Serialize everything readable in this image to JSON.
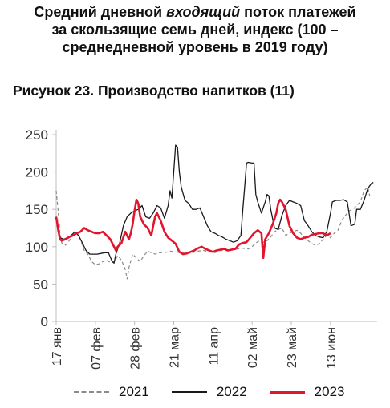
{
  "header": {
    "title_part1": "Средний дневной ",
    "title_italic": "входящий",
    "title_part2": " поток платежей",
    "title_line2": "за скользящие семь дней, индекс (100 –",
    "title_line3": "среднедневной уровень в 2019 году)"
  },
  "figure_caption": "Рисунок 23. Производство напитков (11)",
  "chart_data": {
    "type": "line",
    "x_unit": "days since 17 Jan",
    "x_ticks": [
      {
        "day": 0,
        "label": "17 янв"
      },
      {
        "day": 21,
        "label": "07 фев"
      },
      {
        "day": 42,
        "label": "28 фев"
      },
      {
        "day": 63,
        "label": "21 мар"
      },
      {
        "day": 84,
        "label": "11 апр"
      },
      {
        "day": 105,
        "label": "02 май"
      },
      {
        "day": 126,
        "label": "23 май"
      },
      {
        "day": 147,
        "label": "13 июн"
      }
    ],
    "xlim": [
      0,
      172
    ],
    "ylim": [
      0,
      250
    ],
    "yticks": [
      0,
      50,
      100,
      150,
      200,
      250
    ],
    "grid": false,
    "legend_position": "bottom",
    "series": [
      {
        "name": "2021",
        "color": "#8a8a8a",
        "style": "dashed",
        "points": [
          [
            0,
            175
          ],
          [
            1,
            150
          ],
          [
            2,
            118
          ],
          [
            3,
            105
          ],
          [
            5,
            102
          ],
          [
            7,
            108
          ],
          [
            9,
            115
          ],
          [
            11,
            118
          ],
          [
            13,
            110
          ],
          [
            15,
            95
          ],
          [
            17,
            90
          ],
          [
            19,
            80
          ],
          [
            21,
            76
          ],
          [
            23,
            77
          ],
          [
            25,
            80
          ],
          [
            27,
            82
          ],
          [
            29,
            79
          ],
          [
            31,
            80
          ],
          [
            33,
            88
          ],
          [
            35,
            82
          ],
          [
            37,
            70
          ],
          [
            38,
            57
          ],
          [
            39,
            72
          ],
          [
            41,
            90
          ],
          [
            43,
            85
          ],
          [
            45,
            80
          ],
          [
            47,
            88
          ],
          [
            49,
            94
          ],
          [
            51,
            92
          ],
          [
            53,
            90
          ],
          [
            55,
            92
          ],
          [
            58,
            92
          ],
          [
            61,
            94
          ],
          [
            64,
            93
          ],
          [
            67,
            92
          ],
          [
            70,
            91
          ],
          [
            73,
            92
          ],
          [
            76,
            94
          ],
          [
            79,
            95
          ],
          [
            82,
            93
          ],
          [
            85,
            92
          ],
          [
            88,
            95
          ],
          [
            91,
            95
          ],
          [
            94,
            96
          ],
          [
            97,
            97
          ],
          [
            100,
            98
          ],
          [
            103,
            97
          ],
          [
            105,
            100
          ],
          [
            107,
            105
          ],
          [
            109,
            108
          ],
          [
            111,
            106
          ],
          [
            113,
            108
          ],
          [
            115,
            113
          ],
          [
            117,
            120
          ],
          [
            119,
            123
          ],
          [
            121,
            125
          ],
          [
            123,
            115
          ],
          [
            125,
            118
          ],
          [
            127,
            120
          ],
          [
            129,
            122
          ],
          [
            131,
            118
          ],
          [
            133,
            112
          ],
          [
            135,
            108
          ],
          [
            137,
            104
          ],
          [
            139,
            102
          ],
          [
            141,
            104
          ],
          [
            143,
            110
          ],
          [
            145,
            115
          ],
          [
            147,
            112
          ],
          [
            149,
            118
          ],
          [
            151,
            122
          ],
          [
            153,
            135
          ],
          [
            155,
            142
          ],
          [
            157,
            148
          ],
          [
            159,
            150
          ],
          [
            161,
            155
          ],
          [
            163,
            160
          ],
          [
            165,
            175
          ],
          [
            167,
            180
          ],
          [
            168,
            168
          ]
        ]
      },
      {
        "name": "2022",
        "color": "#1a1a1a",
        "style": "solid",
        "points": [
          [
            0,
            140
          ],
          [
            1,
            120
          ],
          [
            2,
            112
          ],
          [
            4,
            110
          ],
          [
            6,
            112
          ],
          [
            8,
            115
          ],
          [
            10,
            120
          ],
          [
            12,
            115
          ],
          [
            14,
            105
          ],
          [
            16,
            95
          ],
          [
            18,
            90
          ],
          [
            20,
            90
          ],
          [
            22,
            90
          ],
          [
            24,
            91
          ],
          [
            26,
            92
          ],
          [
            28,
            92
          ],
          [
            30,
            80
          ],
          [
            31,
            78
          ],
          [
            32,
            90
          ],
          [
            34,
            105
          ],
          [
            36,
            128
          ],
          [
            38,
            140
          ],
          [
            40,
            145
          ],
          [
            42,
            148
          ],
          [
            44,
            150
          ],
          [
            46,
            155
          ],
          [
            48,
            140
          ],
          [
            50,
            138
          ],
          [
            52,
            145
          ],
          [
            54,
            155
          ],
          [
            56,
            152
          ],
          [
            58,
            138
          ],
          [
            60,
            155
          ],
          [
            61,
            175
          ],
          [
            62,
            165
          ],
          [
            64,
            236
          ],
          [
            65,
            233
          ],
          [
            66,
            200
          ],
          [
            67,
            180
          ],
          [
            69,
            162
          ],
          [
            71,
            158
          ],
          [
            73,
            150
          ],
          [
            75,
            150
          ],
          [
            77,
            152
          ],
          [
            79,
            140
          ],
          [
            81,
            128
          ],
          [
            83,
            120
          ],
          [
            85,
            118
          ],
          [
            87,
            115
          ],
          [
            89,
            113
          ],
          [
            91,
            110
          ],
          [
            93,
            108
          ],
          [
            95,
            106
          ],
          [
            97,
            108
          ],
          [
            99,
            115
          ],
          [
            100,
            150
          ],
          [
            101,
            180
          ],
          [
            102,
            212
          ],
          [
            103,
            213
          ],
          [
            105,
            212
          ],
          [
            106,
            212
          ],
          [
            107,
            170
          ],
          [
            108,
            160
          ],
          [
            110,
            145
          ],
          [
            112,
            160
          ],
          [
            113,
            170
          ],
          [
            114,
            168
          ],
          [
            115,
            150
          ],
          [
            117,
            125
          ],
          [
            119,
            123
          ],
          [
            121,
            142
          ],
          [
            123,
            155
          ],
          [
            125,
            162
          ],
          [
            127,
            160
          ],
          [
            129,
            158
          ],
          [
            131,
            155
          ],
          [
            133,
            135
          ],
          [
            135,
            128
          ],
          [
            137,
            120
          ],
          [
            139,
            115
          ],
          [
            141,
            113
          ],
          [
            143,
            112
          ],
          [
            145,
            120
          ],
          [
            147,
            145
          ],
          [
            148,
            160
          ],
          [
            150,
            162
          ],
          [
            152,
            162
          ],
          [
            154,
            163
          ],
          [
            156,
            160
          ],
          [
            158,
            128
          ],
          [
            160,
            130
          ],
          [
            161,
            150
          ],
          [
            163,
            150
          ],
          [
            165,
            162
          ],
          [
            167,
            178
          ],
          [
            169,
            185
          ],
          [
            170,
            186
          ]
        ]
      },
      {
        "name": "2023",
        "color": "#e3152e",
        "style": "solid",
        "points": [
          [
            0,
            140
          ],
          [
            1,
            125
          ],
          [
            2,
            110
          ],
          [
            3,
            108
          ],
          [
            5,
            110
          ],
          [
            7,
            113
          ],
          [
            9,
            115
          ],
          [
            11,
            118
          ],
          [
            13,
            120
          ],
          [
            15,
            125
          ],
          [
            17,
            122
          ],
          [
            19,
            120
          ],
          [
            21,
            118
          ],
          [
            23,
            118
          ],
          [
            25,
            120
          ],
          [
            27,
            115
          ],
          [
            29,
            110
          ],
          [
            31,
            100
          ],
          [
            32,
            95
          ],
          [
            33,
            100
          ],
          [
            35,
            105
          ],
          [
            37,
            120
          ],
          [
            38,
            115
          ],
          [
            39,
            110
          ],
          [
            40,
            118
          ],
          [
            41,
            130
          ],
          [
            42,
            148
          ],
          [
            43,
            163
          ],
          [
            44,
            158
          ],
          [
            45,
            140
          ],
          [
            47,
            130
          ],
          [
            49,
            125
          ],
          [
            51,
            115
          ],
          [
            52,
            128
          ],
          [
            53,
            140
          ],
          [
            54,
            145
          ],
          [
            56,
            135
          ],
          [
            58,
            120
          ],
          [
            60,
            112
          ],
          [
            62,
            108
          ],
          [
            64,
            104
          ],
          [
            66,
            93
          ],
          [
            68,
            90
          ],
          [
            70,
            91
          ],
          [
            72,
            93
          ],
          [
            74,
            95
          ],
          [
            76,
            98
          ],
          [
            78,
            100
          ],
          [
            80,
            97
          ],
          [
            82,
            95
          ],
          [
            84,
            93
          ],
          [
            86,
            95
          ],
          [
            88,
            96
          ],
          [
            90,
            97
          ],
          [
            92,
            95
          ],
          [
            94,
            96
          ],
          [
            96,
            97
          ],
          [
            98,
            103
          ],
          [
            100,
            105
          ],
          [
            102,
            106
          ],
          [
            104,
            112
          ],
          [
            106,
            118
          ],
          [
            108,
            122
          ],
          [
            110,
            118
          ],
          [
            111,
            85
          ],
          [
            112,
            110
          ],
          [
            114,
            118
          ],
          [
            116,
            130
          ],
          [
            118,
            145
          ],
          [
            119,
            158
          ],
          [
            120,
            163
          ],
          [
            121,
            160
          ],
          [
            123,
            150
          ],
          [
            125,
            128
          ],
          [
            127,
            118
          ],
          [
            129,
            112
          ],
          [
            131,
            110
          ],
          [
            133,
            112
          ],
          [
            135,
            113
          ],
          [
            137,
            116
          ],
          [
            139,
            117
          ],
          [
            141,
            118
          ],
          [
            143,
            118
          ],
          [
            145,
            115
          ],
          [
            147,
            118
          ]
        ]
      }
    ]
  }
}
